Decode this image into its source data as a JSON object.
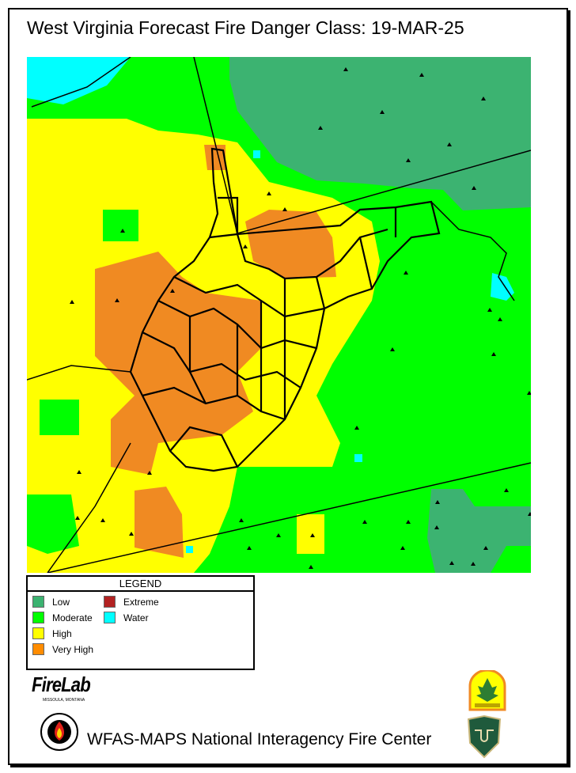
{
  "title": "West Virginia Forecast Fire Danger Class: 19-MAR-25",
  "legend": {
    "heading": "LEGEND",
    "items": [
      {
        "label": "Low",
        "color": "#3cb371"
      },
      {
        "label": "Moderate",
        "color": "#00ff00"
      },
      {
        "label": "High",
        "color": "#ffff00"
      },
      {
        "label": "Very High",
        "color": "#ff8c00"
      },
      {
        "label": "Extreme",
        "color": "#b22222"
      },
      {
        "label": "Water",
        "color": "#00ffff"
      }
    ]
  },
  "logos": {
    "firelab": "FireLab",
    "firelab_sub": "MISSOULA, MONTANA",
    "wv_forestry": "WEST VIRGINIA DIVISION OF FORESTRY",
    "usfs": "US FOREST SERVICE",
    "nifc_seal": "NATIONAL INTERAGENCY FIRE CENTER"
  },
  "footer": "WFAS-MAPS  National Interagency Fire Center"
}
